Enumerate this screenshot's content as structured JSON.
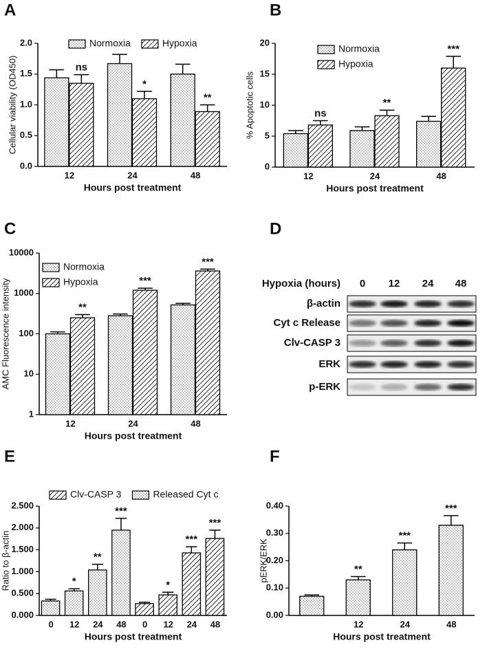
{
  "chart_data": [
    {
      "type": "bar",
      "panel": "A",
      "ylabel": "Cellular viability (OD450)",
      "xlabel": "Hours post treatment",
      "categories": [
        "12",
        "24",
        "48"
      ],
      "series": [
        {
          "name": "Normoxia",
          "pattern": "dots",
          "color": "#000000",
          "values": [
            1.44,
            1.67,
            1.5
          ],
          "errors": [
            0.13,
            0.15,
            0.16
          ],
          "annotations": [
            null,
            null,
            null
          ]
        },
        {
          "name": "Hypoxia",
          "pattern": "hatch",
          "color": "#000000",
          "values": [
            1.35,
            1.1,
            0.89
          ],
          "errors": [
            0.14,
            0.12,
            0.11
          ],
          "annotations": [
            "ns",
            "*",
            "**"
          ]
        }
      ],
      "ylim": [
        0,
        2.0
      ],
      "yticks": [
        {
          "value": 0,
          "label": "0.0"
        },
        {
          "value": 0.5,
          "label": "0.5"
        },
        {
          "value": 1,
          "label": "1.0"
        },
        {
          "value": 1.5,
          "label": "1.5"
        },
        {
          "value": 2,
          "label": "2.0"
        }
      ],
      "legend": "top"
    },
    {
      "type": "bar",
      "panel": "B",
      "ylabel": "% Apoptotic cells",
      "xlabel": "Hours post treatment",
      "categories": [
        "12",
        "24",
        "48"
      ],
      "series": [
        {
          "name": "Normoxia",
          "pattern": "dots",
          "color": "#000000",
          "values": [
            5.4,
            5.9,
            7.4
          ],
          "errors": [
            0.5,
            0.6,
            0.8
          ],
          "annotations": [
            null,
            null,
            null
          ]
        },
        {
          "name": "Hypoxia",
          "pattern": "hatch",
          "color": "#000000",
          "values": [
            6.8,
            8.3,
            16.0
          ],
          "errors": [
            0.7,
            0.9,
            1.9
          ],
          "annotations": [
            "ns",
            "**",
            "***"
          ]
        }
      ],
      "ylim": [
        0,
        20
      ],
      "yticks": [
        0,
        5,
        10,
        15,
        20
      ],
      "legend": "upper left"
    },
    {
      "type": "bar",
      "panel": "C",
      "ylabel": "AMC Fluorescence intensity",
      "xlabel": "Hours post treatment",
      "categories": [
        "12",
        "24",
        "48"
      ],
      "series": [
        {
          "name": "Normoxia",
          "pattern": "dots",
          "color": "#000000",
          "values": [
            100,
            280,
            520
          ],
          "errors": [
            12,
            30,
            50
          ],
          "annotations": [
            null,
            null,
            null
          ]
        },
        {
          "name": "Hypoxia",
          "pattern": "hatch",
          "color": "#000000",
          "values": [
            250,
            1200,
            3600
          ],
          "errors": [
            50,
            150,
            400
          ],
          "annotations": [
            "**",
            "***",
            "***"
          ]
        }
      ],
      "ylim": [
        1,
        10000
      ],
      "yticks": [
        1,
        10,
        100,
        1000,
        10000
      ],
      "log_scale": true,
      "legend": "upper left"
    },
    {
      "type": "bar",
      "panel": "E",
      "ylabel": "Ratio to β-actin",
      "xlabel": "Hours post treatment",
      "categories": [
        "0",
        "12",
        "24",
        "48",
        "0",
        "12",
        "24",
        "48"
      ],
      "series": [
        {
          "name": "Clv-CASP 3",
          "pattern": "hatch",
          "color": "#000000",
          "values": [
            null,
            null,
            null,
            null,
            0.27,
            0.47,
            1.43,
            1.76
          ],
          "errors": [
            null,
            null,
            null,
            null,
            0.03,
            0.06,
            0.14,
            0.19
          ],
          "annotations": [
            null,
            null,
            null,
            null,
            null,
            "*",
            "***",
            "***"
          ]
        },
        {
          "name": "Released Cyt c",
          "pattern": "dots",
          "color": "#000000",
          "values": [
            0.33,
            0.56,
            1.04,
            1.95,
            null,
            null,
            null,
            null
          ],
          "errors": [
            0.04,
            0.05,
            0.13,
            0.27,
            null,
            null,
            null,
            null
          ],
          "annotations": [
            null,
            "*",
            "**",
            "***",
            null,
            null,
            null,
            null
          ]
        }
      ],
      "ylim": [
        0,
        2.5
      ],
      "yticks": [
        {
          "value": 0,
          "label": "0.000"
        },
        {
          "value": 0.5,
          "label": "0.500"
        },
        {
          "value": 1,
          "label": "1.000"
        },
        {
          "value": 1.5,
          "label": "1.500"
        },
        {
          "value": 2,
          "label": "2.000"
        },
        {
          "value": 2.5,
          "label": "2.500"
        }
      ],
      "legend": "top"
    },
    {
      "type": "bar",
      "panel": "F",
      "ylabel": "pERK/ERK",
      "xlabel": "Hours post treatment",
      "categories": [
        null,
        "12",
        "24",
        "48"
      ],
      "series": [
        {
          "pattern": "dots",
          "color": "#000000",
          "values": [
            0.07,
            0.13,
            0.24,
            0.33
          ],
          "errors": [
            0.005,
            0.012,
            0.025,
            0.035
          ],
          "annotations": [
            null,
            "**",
            "***",
            "***"
          ]
        }
      ],
      "ylim": [
        0,
        0.4
      ],
      "yticks": [
        {
          "value": 0,
          "label": "0.00"
        },
        {
          "value": 0.1,
          "label": "0.10"
        },
        {
          "value": 0.2,
          "label": "0.20"
        },
        {
          "value": 0.3,
          "label": "0.30"
        },
        {
          "value": 0.4,
          "label": "0.40"
        }
      ]
    }
  ],
  "blot": {
    "panel": "D",
    "header": "Hypoxia (hours)",
    "lanes": [
      "0",
      "12",
      "24",
      "48"
    ],
    "rows": [
      "β-actin",
      "Cyt c Release",
      "Clv-CASP 3",
      "ERK",
      "p-ERK"
    ]
  }
}
